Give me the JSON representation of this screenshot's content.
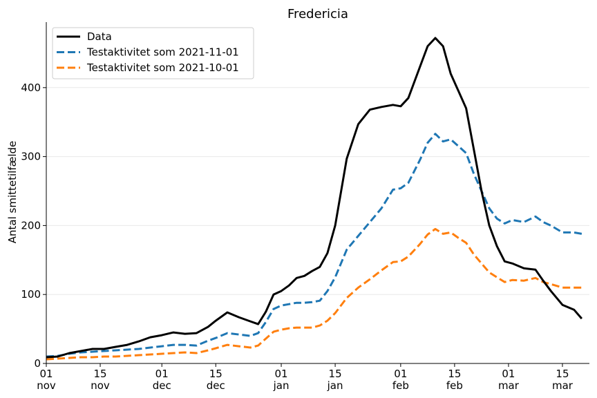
{
  "chart_data": {
    "type": "line",
    "title": "Fredericia",
    "xlabel": "",
    "ylabel": "Antal smittetilfælde",
    "xlim": [
      "2021-11-01",
      "2022-03-22"
    ],
    "ylim": [
      0,
      495
    ],
    "yticks": [
      0,
      100,
      200,
      300,
      400
    ],
    "xticks": [
      {
        "date": "2021-11-01",
        "day": "01",
        "month": "nov"
      },
      {
        "date": "2021-11-15",
        "day": "15",
        "month": "nov"
      },
      {
        "date": "2021-12-01",
        "day": "01",
        "month": "dec"
      },
      {
        "date": "2021-12-15",
        "day": "15",
        "month": "dec"
      },
      {
        "date": "2022-01-01",
        "day": "01",
        "month": "jan"
      },
      {
        "date": "2022-01-15",
        "day": "15",
        "month": "jan"
      },
      {
        "date": "2022-02-01",
        "day": "01",
        "month": "feb"
      },
      {
        "date": "2022-02-15",
        "day": "15",
        "month": "feb"
      },
      {
        "date": "2022-03-01",
        "day": "01",
        "month": "mar"
      },
      {
        "date": "2022-03-15",
        "day": "15",
        "month": "mar"
      }
    ],
    "grid": "horizontal",
    "legend": "top-left",
    "series": [
      {
        "name": "Data",
        "color": "#000000",
        "style": "solid",
        "points": [
          [
            "2021-11-01",
            9
          ],
          [
            "2021-11-04",
            10
          ],
          [
            "2021-11-07",
            15
          ],
          [
            "2021-11-10",
            18
          ],
          [
            "2021-11-13",
            21
          ],
          [
            "2021-11-16",
            21
          ],
          [
            "2021-11-19",
            24
          ],
          [
            "2021-11-22",
            27
          ],
          [
            "2021-11-25",
            32
          ],
          [
            "2021-11-28",
            38
          ],
          [
            "2021-12-01",
            41
          ],
          [
            "2021-12-04",
            45
          ],
          [
            "2021-12-07",
            43
          ],
          [
            "2021-12-10",
            44
          ],
          [
            "2021-12-13",
            53
          ],
          [
            "2021-12-15",
            62
          ],
          [
            "2021-12-18",
            74
          ],
          [
            "2021-12-21",
            67
          ],
          [
            "2021-12-24",
            61
          ],
          [
            "2021-12-26",
            57
          ],
          [
            "2021-12-28",
            75
          ],
          [
            "2021-12-30",
            100
          ],
          [
            "2022-01-01",
            105
          ],
          [
            "2022-01-03",
            113
          ],
          [
            "2022-01-05",
            124
          ],
          [
            "2022-01-07",
            127
          ],
          [
            "2022-01-09",
            134
          ],
          [
            "2022-01-11",
            140
          ],
          [
            "2022-01-13",
            160
          ],
          [
            "2022-01-15",
            200
          ],
          [
            "2022-01-18",
            297
          ],
          [
            "2022-01-21",
            347
          ],
          [
            "2022-01-24",
            368
          ],
          [
            "2022-01-27",
            372
          ],
          [
            "2022-01-30",
            375
          ],
          [
            "2022-02-01",
            373
          ],
          [
            "2022-02-03",
            385
          ],
          [
            "2022-02-06",
            430
          ],
          [
            "2022-02-08",
            460
          ],
          [
            "2022-02-10",
            472
          ],
          [
            "2022-02-12",
            460
          ],
          [
            "2022-02-14",
            420
          ],
          [
            "2022-02-16",
            395
          ],
          [
            "2022-02-18",
            370
          ],
          [
            "2022-02-20",
            310
          ],
          [
            "2022-02-22",
            250
          ],
          [
            "2022-02-24",
            200
          ],
          [
            "2022-02-26",
            170
          ],
          [
            "2022-02-28",
            148
          ],
          [
            "2022-03-02",
            145
          ],
          [
            "2022-03-05",
            138
          ],
          [
            "2022-03-08",
            136
          ],
          [
            "2022-03-10",
            120
          ],
          [
            "2022-03-12",
            105
          ],
          [
            "2022-03-15",
            85
          ],
          [
            "2022-03-18",
            78
          ],
          [
            "2022-03-20",
            65
          ]
        ]
      },
      {
        "name": "Testaktivitet som 2021-11-01",
        "color": "#1f77b4",
        "style": "dashed",
        "points": [
          [
            "2021-11-01",
            10
          ],
          [
            "2021-11-04",
            11
          ],
          [
            "2021-11-07",
            14
          ],
          [
            "2021-11-10",
            16
          ],
          [
            "2021-11-13",
            17
          ],
          [
            "2021-11-16",
            18
          ],
          [
            "2021-11-19",
            19
          ],
          [
            "2021-11-22",
            20
          ],
          [
            "2021-11-25",
            21
          ],
          [
            "2021-11-28",
            23
          ],
          [
            "2021-12-01",
            25
          ],
          [
            "2021-12-04",
            27
          ],
          [
            "2021-12-07",
            27
          ],
          [
            "2021-12-10",
            26
          ],
          [
            "2021-12-13",
            33
          ],
          [
            "2021-12-15",
            37
          ],
          [
            "2021-12-18",
            44
          ],
          [
            "2021-12-21",
            42
          ],
          [
            "2021-12-24",
            40
          ],
          [
            "2021-12-26",
            44
          ],
          [
            "2021-12-28",
            60
          ],
          [
            "2021-12-30",
            79
          ],
          [
            "2022-01-01",
            84
          ],
          [
            "2022-01-03",
            86
          ],
          [
            "2022-01-05",
            88
          ],
          [
            "2022-01-07",
            88
          ],
          [
            "2022-01-09",
            89
          ],
          [
            "2022-01-11",
            91
          ],
          [
            "2022-01-13",
            105
          ],
          [
            "2022-01-15",
            125
          ],
          [
            "2022-01-18",
            165
          ],
          [
            "2022-01-21",
            185
          ],
          [
            "2022-01-24",
            205
          ],
          [
            "2022-01-27",
            225
          ],
          [
            "2022-01-30",
            252
          ],
          [
            "2022-02-01",
            254
          ],
          [
            "2022-02-03",
            262
          ],
          [
            "2022-02-06",
            295
          ],
          [
            "2022-02-08",
            320
          ],
          [
            "2022-02-10",
            333
          ],
          [
            "2022-02-12",
            322
          ],
          [
            "2022-02-14",
            325
          ],
          [
            "2022-02-16",
            315
          ],
          [
            "2022-02-18",
            305
          ],
          [
            "2022-02-20",
            275
          ],
          [
            "2022-02-22",
            250
          ],
          [
            "2022-02-24",
            225
          ],
          [
            "2022-02-26",
            210
          ],
          [
            "2022-02-28",
            203
          ],
          [
            "2022-03-02",
            208
          ],
          [
            "2022-03-05",
            205
          ],
          [
            "2022-03-08",
            213
          ],
          [
            "2022-03-10",
            205
          ],
          [
            "2022-03-12",
            200
          ],
          [
            "2022-03-15",
            190
          ],
          [
            "2022-03-18",
            190
          ],
          [
            "2022-03-20",
            188
          ]
        ]
      },
      {
        "name": "Testaktivitet som 2021-10-01",
        "color": "#ff7f0e",
        "style": "dashed",
        "points": [
          [
            "2021-11-01",
            6
          ],
          [
            "2021-11-04",
            7
          ],
          [
            "2021-11-07",
            8
          ],
          [
            "2021-11-10",
            9
          ],
          [
            "2021-11-13",
            9
          ],
          [
            "2021-11-16",
            10
          ],
          [
            "2021-11-19",
            10
          ],
          [
            "2021-11-22",
            11
          ],
          [
            "2021-11-25",
            12
          ],
          [
            "2021-11-28",
            13
          ],
          [
            "2021-12-01",
            14
          ],
          [
            "2021-12-04",
            15
          ],
          [
            "2021-12-07",
            16
          ],
          [
            "2021-12-10",
            15
          ],
          [
            "2021-12-13",
            19
          ],
          [
            "2021-12-15",
            22
          ],
          [
            "2021-12-18",
            27
          ],
          [
            "2021-12-21",
            25
          ],
          [
            "2021-12-24",
            23
          ],
          [
            "2021-12-26",
            26
          ],
          [
            "2021-12-28",
            36
          ],
          [
            "2021-12-30",
            46
          ],
          [
            "2022-01-01",
            49
          ],
          [
            "2022-01-03",
            51
          ],
          [
            "2022-01-05",
            52
          ],
          [
            "2022-01-07",
            52
          ],
          [
            "2022-01-09",
            52
          ],
          [
            "2022-01-11",
            55
          ],
          [
            "2022-01-13",
            62
          ],
          [
            "2022-01-15",
            73
          ],
          [
            "2022-01-18",
            95
          ],
          [
            "2022-01-21",
            110
          ],
          [
            "2022-01-24",
            122
          ],
          [
            "2022-01-27",
            135
          ],
          [
            "2022-01-30",
            147
          ],
          [
            "2022-02-01",
            148
          ],
          [
            "2022-02-03",
            155
          ],
          [
            "2022-02-06",
            173
          ],
          [
            "2022-02-08",
            187
          ],
          [
            "2022-02-10",
            195
          ],
          [
            "2022-02-12",
            188
          ],
          [
            "2022-02-14",
            190
          ],
          [
            "2022-02-16",
            182
          ],
          [
            "2022-02-18",
            175
          ],
          [
            "2022-02-20",
            158
          ],
          [
            "2022-02-22",
            145
          ],
          [
            "2022-02-24",
            132
          ],
          [
            "2022-02-26",
            125
          ],
          [
            "2022-02-28",
            118
          ],
          [
            "2022-03-02",
            121
          ],
          [
            "2022-03-05",
            120
          ],
          [
            "2022-03-08",
            124
          ],
          [
            "2022-03-10",
            118
          ],
          [
            "2022-03-12",
            115
          ],
          [
            "2022-03-15",
            110
          ],
          [
            "2022-03-18",
            110
          ],
          [
            "2022-03-20",
            110
          ]
        ]
      }
    ]
  }
}
